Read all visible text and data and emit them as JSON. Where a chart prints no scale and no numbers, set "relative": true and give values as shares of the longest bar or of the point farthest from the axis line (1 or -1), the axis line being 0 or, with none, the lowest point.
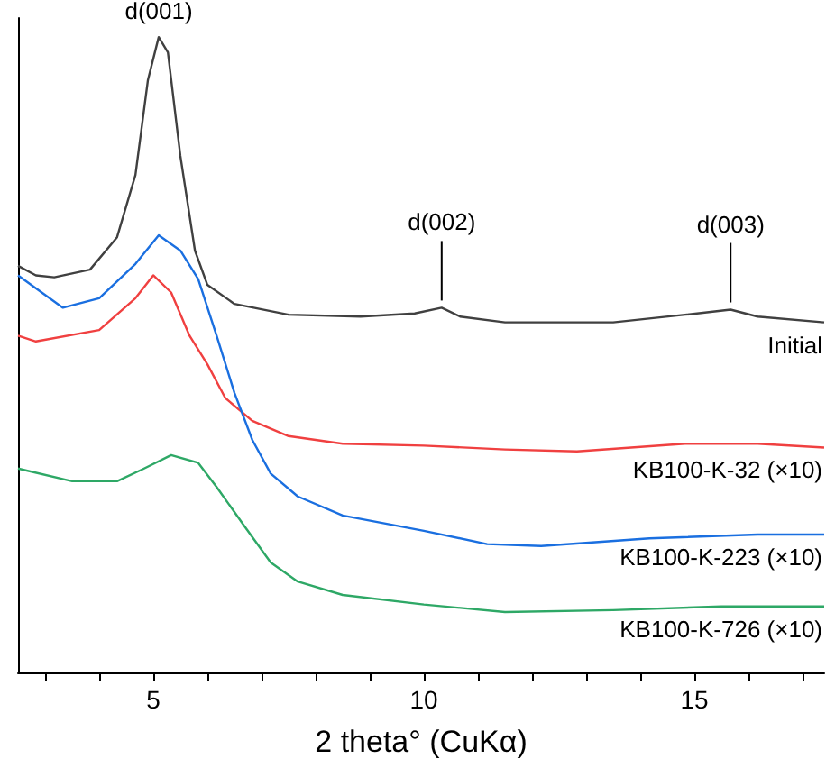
{
  "chart_data": {
    "type": "line",
    "relative": true,
    "xlabel": "2 theta° (CuKα)",
    "xlim": [
      2.5,
      17.4
    ],
    "xticks": [
      {
        "value": 3,
        "label": null
      },
      {
        "value": 4,
        "label": null
      },
      5,
      {
        "value": 6,
        "label": null
      },
      {
        "value": 7,
        "label": null
      },
      {
        "value": 8,
        "label": null
      },
      {
        "value": 9,
        "label": null
      },
      10,
      {
        "value": 11,
        "label": null
      },
      {
        "value": 12,
        "label": null
      },
      {
        "value": 13,
        "label": null
      },
      {
        "value": 14,
        "label": null
      },
      15,
      {
        "value": 16,
        "label": null
      },
      {
        "value": 17,
        "label": null
      }
    ],
    "marker": "none",
    "grid": false,
    "legend": false,
    "series": [
      {
        "name": "Initial",
        "color": "#404040",
        "x": [
          2.5,
          2.83,
          3.17,
          3.83,
          4.33,
          4.67,
          4.9,
          5.1,
          5.27,
          5.5,
          5.77,
          6,
          6.5,
          7.5,
          8.83,
          9.83,
          10.33,
          10.67,
          11.5,
          13.5,
          14.83,
          15.67,
          16.17,
          17.4
        ],
        "values": [
          0.64,
          0.625,
          0.622,
          0.634,
          0.685,
          0.783,
          0.932,
          1,
          0.976,
          0.813,
          0.664,
          0.61,
          0.58,
          0.563,
          0.56,
          0.565,
          0.574,
          0.56,
          0.551,
          0.551,
          0.563,
          0.571,
          0.56,
          0.551
        ]
      },
      {
        "name": "KB100-K-32 (×10)",
        "color": "#f04040",
        "x": [
          2.5,
          2.83,
          4,
          4.67,
          5,
          5.33,
          5.67,
          6,
          6.33,
          6.83,
          7.5,
          8.5,
          10,
          11.5,
          12.83,
          14.83,
          16.17,
          17.4
        ],
        "values": [
          0.53,
          0.521,
          0.539,
          0.589,
          0.625,
          0.598,
          0.53,
          0.485,
          0.432,
          0.396,
          0.372,
          0.36,
          0.357,
          0.351,
          0.348,
          0.36,
          0.36,
          0.354
        ]
      },
      {
        "name": "KB100-K-223 (×10)",
        "color": "#1a6fe0",
        "x": [
          2.5,
          3.33,
          4,
          4.67,
          5.1,
          5.5,
          5.83,
          6.17,
          6.5,
          6.83,
          7.17,
          7.67,
          8.5,
          10,
          11.17,
          12.17,
          14.17,
          16.17,
          17.4
        ],
        "values": [
          0.625,
          0.574,
          0.589,
          0.643,
          0.688,
          0.664,
          0.619,
          0.53,
          0.44,
          0.366,
          0.313,
          0.277,
          0.247,
          0.223,
          0.202,
          0.199,
          0.211,
          0.217,
          0.217
        ]
      },
      {
        "name": "KB100-K-726 (×10)",
        "color": "#2ea866",
        "x": [
          2.5,
          3.5,
          4.33,
          4.83,
          5.33,
          5.83,
          6.17,
          6.67,
          7.17,
          7.67,
          8.5,
          10,
          11.5,
          13.5,
          15.5,
          17.4
        ],
        "values": [
          0.321,
          0.301,
          0.301,
          0.321,
          0.342,
          0.33,
          0.292,
          0.232,
          0.173,
          0.143,
          0.122,
          0.107,
          0.095,
          0.098,
          0.104,
          0.104
        ]
      }
    ],
    "annotations": [
      {
        "text": "d(001)",
        "x": 5.1,
        "y": 1
      },
      {
        "text": "d(002)",
        "x": 10.33,
        "y": 0.574
      },
      {
        "text": "d(003)",
        "x": 15.67,
        "y": 0.571
      }
    ]
  }
}
